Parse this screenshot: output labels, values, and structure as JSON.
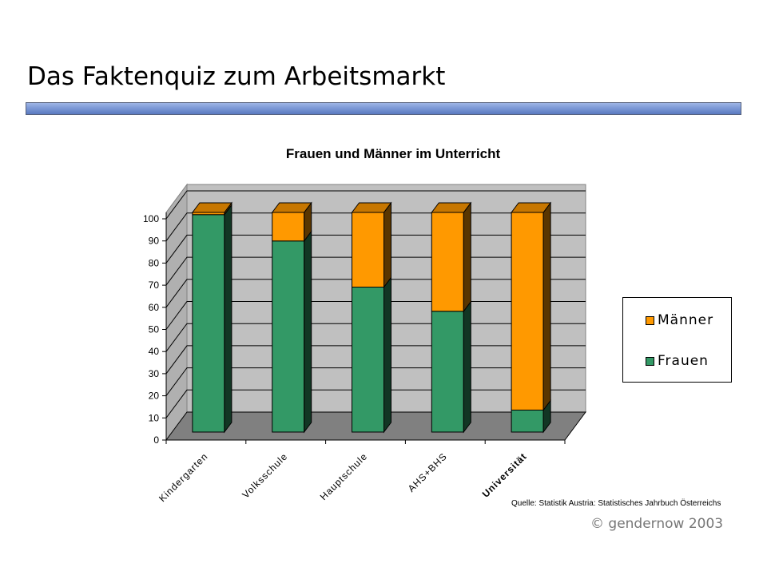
{
  "slide": {
    "title": "Das Faktenquiz zum Arbeitsmarkt",
    "source": "Quelle: Statistik Austria: Statistisches Jahrbuch Österreichs",
    "copyright_symbol": "©",
    "copyright_text": "gendernow 2003"
  },
  "chart_data": {
    "type": "bar",
    "stacked": true,
    "three_d": true,
    "title": "Frauen und Männer im Unterricht",
    "xlabel": "",
    "ylabel": "",
    "ylim": [
      0,
      100
    ],
    "yticks": [
      0,
      10,
      20,
      30,
      40,
      50,
      60,
      70,
      80,
      90,
      100
    ],
    "categories": [
      "Kindergarten",
      "Volksschule",
      "Hauptschule",
      "AHS+BHS",
      "Universität"
    ],
    "series": [
      {
        "name": "Frauen",
        "color": "#339966",
        "values": [
          99,
          87,
          66,
          55,
          10
        ]
      },
      {
        "name": "Männer",
        "color": "#ff9900",
        "values": [
          1,
          13,
          34,
          45,
          90
        ]
      }
    ],
    "grid": true,
    "legend": "right",
    "wall_color": "#c0c0c0",
    "floor_color": "#808080"
  }
}
